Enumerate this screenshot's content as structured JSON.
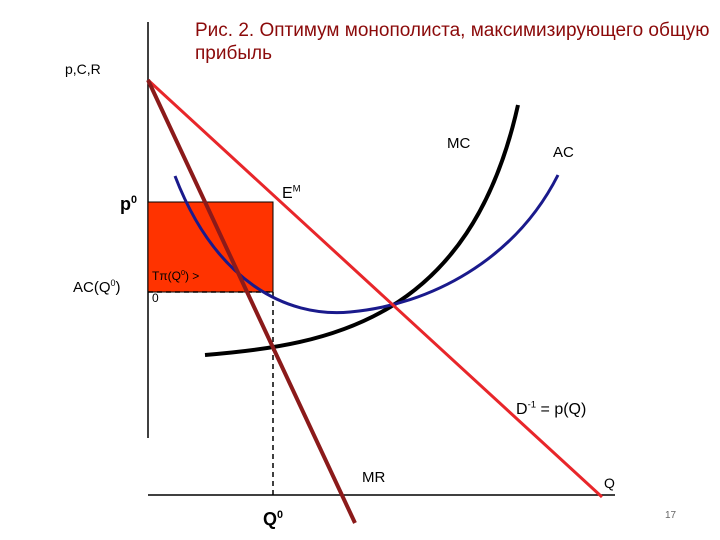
{
  "title": "Рис. 2. Оптимум монополиста, максимизирующего общую прибыль",
  "labels": {
    "y_axis": "p,C,R",
    "x_axis": "Q",
    "mc": "MC",
    "ac": "AC",
    "price": "p",
    "price_sup": "0",
    "ac_q0": "AC(Q",
    "ac_q0_sup": "0",
    "ac_q0_end": ")",
    "em": "E",
    "em_sup": "M",
    "profit": "Tπ(Q",
    "profit_sup": "0",
    "profit_end": ") >",
    "profit_line2": "0",
    "demand": "D",
    "demand_sup": "-1",
    "demand_end": " = p(Q)",
    "mr": "MR",
    "q0": "Q",
    "q0_sup": "0"
  },
  "colors": {
    "demand": "#e8262a",
    "mr": "#8b1a1a",
    "mc": "#000000",
    "ac": "#1a1a8c",
    "profit_area": "#ff3300",
    "title": "#8b0a0a"
  },
  "page_number": "17"
}
